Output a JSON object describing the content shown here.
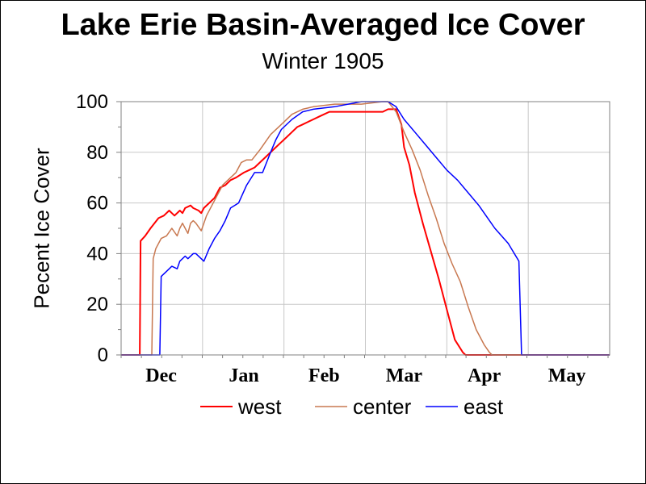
{
  "chart_data": {
    "type": "line",
    "title": "Lake Erie Basin-Averaged Ice Cover",
    "subtitle": "Winter 1905",
    "ylabel": "Pecent Ice Cover",
    "xlabel": "",
    "ylim": [
      0,
      100
    ],
    "yticks": [
      0,
      20,
      40,
      60,
      80,
      100
    ],
    "xlim": [
      0,
      183
    ],
    "x_unit": "days from Nov 20",
    "month_labels": [
      {
        "label": "Dec",
        "x": 15
      },
      {
        "label": "Jan",
        "x": 46
      },
      {
        "label": "Feb",
        "x": 76
      },
      {
        "label": "Mar",
        "x": 106
      },
      {
        "label": "Apr",
        "x": 136
      },
      {
        "label": "May",
        "x": 167
      }
    ],
    "grid": true,
    "legend_position": "bottom",
    "series": [
      {
        "name": "west",
        "color": "#ff0000",
        "x": [
          0,
          7,
          7.3,
          9,
          11,
          14,
          16,
          18,
          19,
          20,
          22,
          23,
          24,
          26,
          27,
          29,
          30,
          31,
          33,
          35,
          37,
          39,
          41,
          43,
          46,
          48,
          50,
          52,
          54,
          58,
          60,
          62,
          64,
          66,
          68,
          70,
          72,
          74,
          76,
          78,
          82,
          86,
          90,
          94,
          98,
          100,
          103,
          105,
          106,
          108,
          110,
          113,
          116,
          119,
          122,
          125,
          128,
          129,
          130,
          183
        ],
        "y": [
          0,
          0,
          45,
          47,
          50,
          54,
          55,
          57,
          56,
          55,
          57,
          56,
          58,
          59,
          58,
          57,
          56,
          58,
          60,
          62,
          66,
          67,
          69,
          70,
          72,
          73,
          74,
          76,
          78,
          82,
          84,
          86,
          88,
          90,
          91,
          92,
          93,
          94,
          95,
          96,
          96,
          96,
          96,
          96,
          96,
          97,
          97,
          91,
          82,
          75,
          64,
          52,
          41,
          30,
          18,
          6,
          1,
          0,
          0,
          0
        ]
      },
      {
        "name": "center",
        "color": "#c87850",
        "x": [
          0,
          11.5,
          12,
          13,
          15,
          17,
          19,
          21,
          22,
          23,
          24,
          25,
          26,
          27,
          28,
          30,
          32,
          34,
          36,
          38,
          40,
          43,
          45,
          47,
          49,
          52,
          56,
          60,
          64,
          68,
          72,
          80,
          90,
          98,
          100,
          103,
          106,
          109,
          112,
          115,
          118,
          121,
          124,
          127,
          130,
          133,
          136,
          138,
          139,
          140,
          183
        ],
        "y": [
          0,
          0,
          38,
          42,
          46,
          47,
          50,
          47,
          50,
          52,
          50,
          48,
          52,
          53,
          52,
          49,
          55,
          59,
          63,
          67,
          69,
          72,
          76,
          77,
          77,
          81,
          87,
          91,
          95,
          97,
          98,
          99,
          99,
          100,
          100,
          96,
          88,
          81,
          73,
          63,
          54,
          44,
          36,
          29,
          19,
          10,
          4,
          1,
          0,
          0,
          0
        ]
      },
      {
        "name": "east",
        "color": "#0000ff",
        "x": [
          0,
          14.5,
          15,
          17,
          19,
          21,
          22,
          24,
          25,
          27,
          28,
          30,
          31,
          33,
          35,
          37,
          39,
          41,
          44,
          47,
          50,
          53,
          56,
          58,
          60,
          64,
          68,
          72,
          80,
          90,
          100,
          103,
          106,
          110,
          114,
          118,
          122,
          126,
          130,
          134,
          138,
          140,
          145,
          149,
          150,
          183
        ],
        "y": [
          0,
          0,
          31,
          33,
          35,
          34,
          37,
          39,
          38,
          40,
          40,
          38,
          37,
          42,
          46,
          49,
          53,
          58,
          60,
          67,
          72,
          72,
          80,
          85,
          89,
          93,
          96,
          97,
          98,
          100,
          100,
          98,
          93,
          88,
          83,
          78,
          73,
          69,
          64,
          59,
          53,
          50,
          44,
          37,
          0,
          0
        ]
      }
    ]
  }
}
